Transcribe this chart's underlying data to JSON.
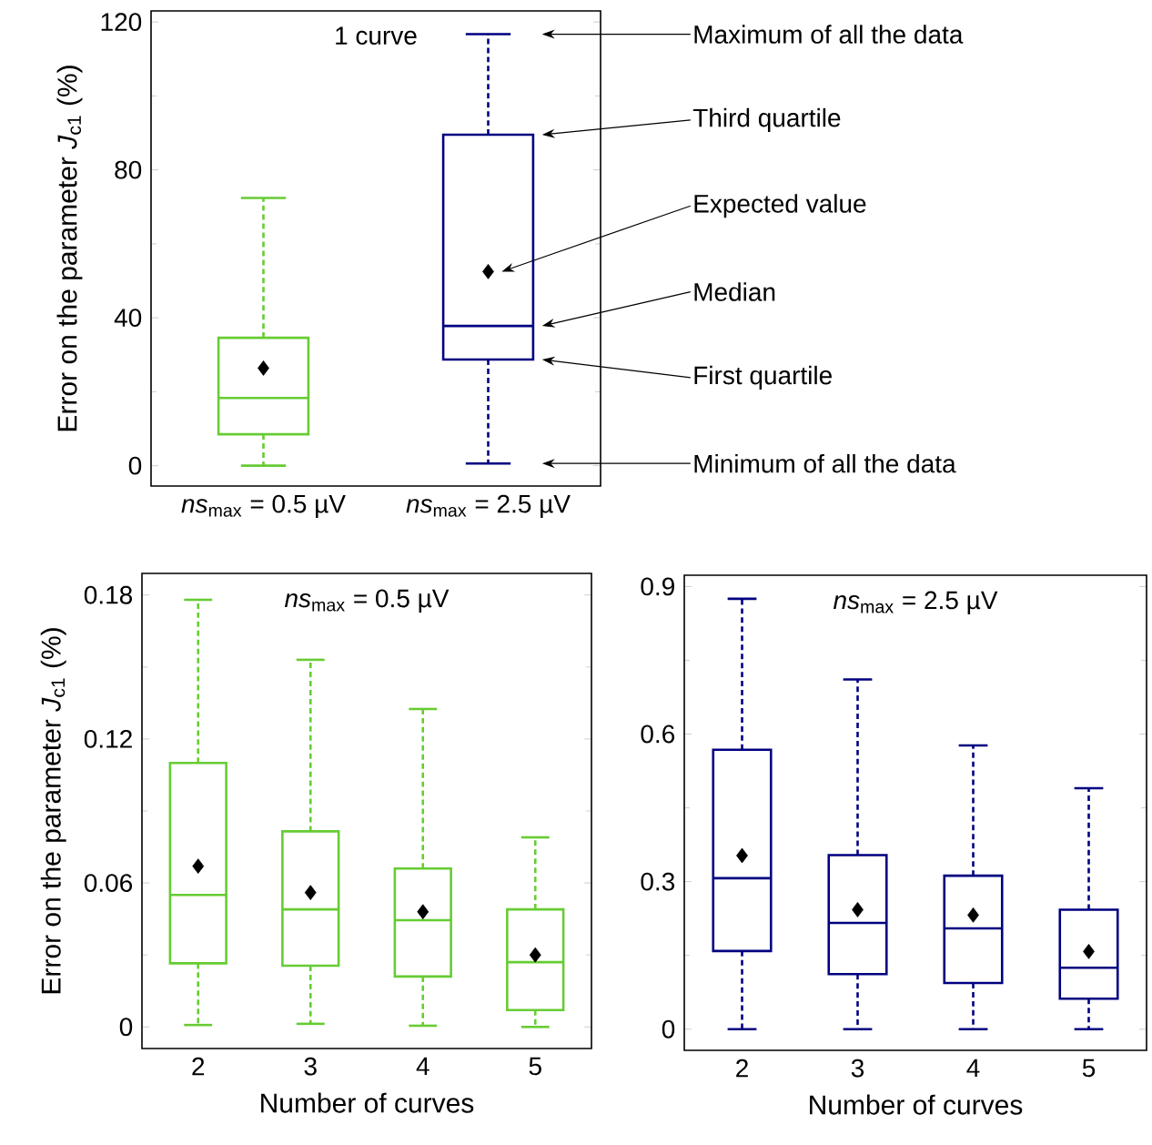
{
  "chart_data": [
    {
      "type": "box",
      "title": "1 curve",
      "ylabel": "Error on the parameter *J*$_{c1}$ (%)",
      "categories": [
        "*ns*$_{max}$ = 0.5 µV",
        "*ns*$_{max}$ = 2.5 µV"
      ],
      "colors": [
        "#66cc33",
        "#000080"
      ],
      "boxes": [
        {
          "low": 0,
          "q1": 8.5,
          "median": 18.3,
          "q3": 34.6,
          "high": 72.4,
          "mean": 26.4
        },
        {
          "low": 0.6,
          "q1": 28.7,
          "median": 37.8,
          "q3": 89.5,
          "high": 116.7,
          "mean": 52.5
        }
      ],
      "ylim": [
        -5.5,
        123
      ],
      "yticks": [
        0,
        40,
        80,
        120
      ],
      "annotations": [
        "Maximum of all the data",
        "Third quartile",
        "Expected value",
        "Median",
        "First quartile",
        "Minimum of all the data"
      ]
    },
    {
      "type": "box",
      "title": "*ns*$_{max}$ = 0.5 µV",
      "xlabel": "Number of curves",
      "ylabel": "Error on the parameter *J*$_{c1}$ (%)",
      "categories": [
        "2",
        "3",
        "4",
        "5"
      ],
      "color": "#66cc33",
      "boxes": [
        {
          "low": 0.0008,
          "q1": 0.0265,
          "median": 0.055,
          "q3": 0.11,
          "high": 0.178,
          "mean": 0.067
        },
        {
          "low": 0.0013,
          "q1": 0.0255,
          "median": 0.049,
          "q3": 0.0815,
          "high": 0.153,
          "mean": 0.056
        },
        {
          "low": 0.0005,
          "q1": 0.021,
          "median": 0.0445,
          "q3": 0.066,
          "high": 0.1325,
          "mean": 0.048
        },
        {
          "low": 0,
          "q1": 0.007,
          "median": 0.027,
          "q3": 0.049,
          "high": 0.079,
          "mean": 0.03
        }
      ],
      "ylim": [
        -0.009,
        0.189
      ],
      "yticks": [
        0,
        0.06,
        0.12,
        0.18
      ]
    },
    {
      "type": "box",
      "title": "*ns*$_{max}$ = 2.5 µV",
      "xlabel": "Number of curves",
      "categories": [
        "2",
        "3",
        "4",
        "5"
      ],
      "color": "#000080",
      "boxes": [
        {
          "low": 0,
          "q1": 0.159,
          "median": 0.307,
          "q3": 0.568,
          "high": 0.875,
          "mean": 0.353
        },
        {
          "low": 0,
          "q1": 0.112,
          "median": 0.216,
          "q3": 0.354,
          "high": 0.711,
          "mean": 0.243
        },
        {
          "low": 0,
          "q1": 0.094,
          "median": 0.205,
          "q3": 0.312,
          "high": 0.577,
          "mean": 0.232
        },
        {
          "low": 0,
          "q1": 0.062,
          "median": 0.125,
          "q3": 0.243,
          "high": 0.49,
          "mean": 0.158
        }
      ],
      "ylim": [
        -0.043,
        0.923
      ],
      "yticks": [
        0,
        0.3,
        0.6,
        0.9
      ]
    }
  ]
}
